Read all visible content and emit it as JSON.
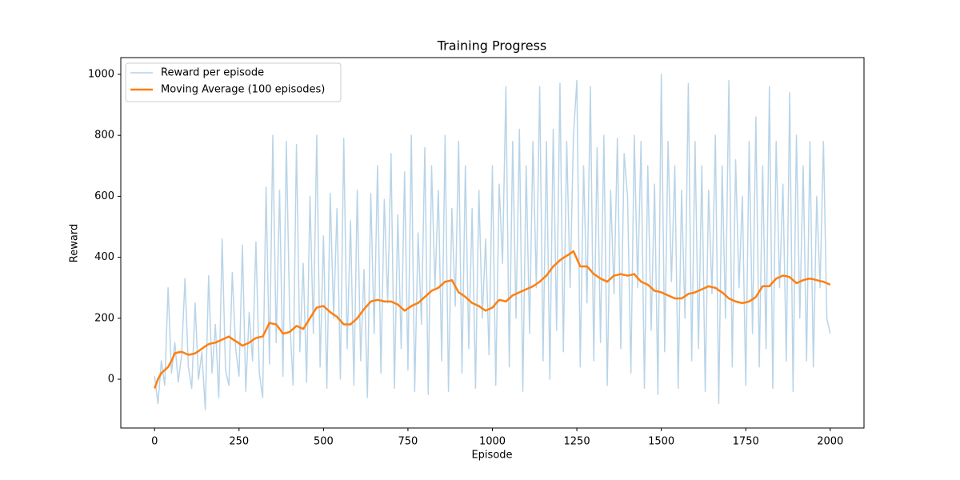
{
  "chart_data": {
    "type": "line",
    "title": "Training Progress",
    "x_label": "Episode",
    "y_label": "Reward",
    "x": [
      0,
      10,
      20,
      30,
      40,
      50,
      60,
      70,
      80,
      90,
      100,
      110,
      120,
      130,
      140,
      150,
      160,
      170,
      180,
      190,
      200,
      210,
      220,
      230,
      240,
      250,
      260,
      270,
      280,
      290,
      300,
      310,
      320,
      330,
      340,
      350,
      360,
      370,
      380,
      390,
      400,
      410,
      420,
      430,
      440,
      450,
      460,
      470,
      480,
      490,
      500,
      510,
      520,
      530,
      540,
      550,
      560,
      570,
      580,
      590,
      600,
      610,
      620,
      630,
      640,
      650,
      660,
      670,
      680,
      690,
      700,
      710,
      720,
      730,
      740,
      750,
      760,
      770,
      780,
      790,
      800,
      810,
      820,
      830,
      840,
      850,
      860,
      870,
      880,
      890,
      900,
      910,
      920,
      930,
      940,
      950,
      960,
      970,
      980,
      990,
      1000,
      1010,
      1020,
      1030,
      1040,
      1050,
      1060,
      1070,
      1080,
      1090,
      1100,
      1110,
      1120,
      1130,
      1140,
      1150,
      1160,
      1170,
      1180,
      1190,
      1200,
      1210,
      1220,
      1230,
      1240,
      1250,
      1260,
      1270,
      1280,
      1290,
      1300,
      1310,
      1320,
      1330,
      1340,
      1350,
      1360,
      1370,
      1380,
      1390,
      1400,
      1410,
      1420,
      1430,
      1440,
      1450,
      1460,
      1470,
      1480,
      1490,
      1500,
      1510,
      1520,
      1530,
      1540,
      1550,
      1560,
      1570,
      1580,
      1590,
      1600,
      1610,
      1620,
      1630,
      1640,
      1650,
      1660,
      1670,
      1680,
      1690,
      1700,
      1710,
      1720,
      1730,
      1740,
      1750,
      1760,
      1770,
      1780,
      1790,
      1800,
      1810,
      1820,
      1830,
      1840,
      1850,
      1860,
      1870,
      1880,
      1890,
      1900,
      1910,
      1920,
      1930,
      1940,
      1950,
      1960,
      1970,
      1980,
      1990,
      2000
    ],
    "series": [
      {
        "name": "Reward per episode",
        "color": "#b9d4e8",
        "width": 1.5,
        "values": [
          10,
          -80,
          60,
          -20,
          300,
          20,
          120,
          -10,
          80,
          330,
          40,
          -30,
          250,
          0,
          90,
          -100,
          340,
          20,
          180,
          -60,
          460,
          30,
          -20,
          350,
          100,
          10,
          440,
          -40,
          220,
          60,
          450,
          20,
          -60,
          630,
          50,
          800,
          120,
          620,
          10,
          780,
          200,
          -20,
          770,
          90,
          380,
          -10,
          600,
          150,
          800,
          40,
          470,
          -30,
          610,
          200,
          560,
          0,
          790,
          100,
          520,
          -20,
          620,
          60,
          360,
          -60,
          610,
          150,
          700,
          20,
          590,
          250,
          740,
          -30,
          540,
          100,
          680,
          30,
          800,
          -40,
          480,
          180,
          760,
          -50,
          700,
          300,
          620,
          60,
          800,
          -40,
          560,
          240,
          780,
          20,
          700,
          100,
          560,
          -30,
          620,
          200,
          460,
          80,
          700,
          -20,
          640,
          380,
          960,
          40,
          780,
          200,
          820,
          -40,
          700,
          150,
          780,
          300,
          960,
          60,
          780,
          0,
          820,
          160,
          970,
          90,
          780,
          300,
          800,
          980,
          40,
          700,
          250,
          960,
          60,
          760,
          120,
          800,
          -20,
          620,
          280,
          790,
          100,
          740,
          600,
          20,
          800,
          300,
          780,
          -30,
          700,
          160,
          640,
          -50,
          1000,
          90,
          780,
          320,
          700,
          -30,
          620,
          200,
          970,
          60,
          780,
          100,
          700,
          -40,
          620,
          280,
          800,
          -80,
          700,
          200,
          980,
          40,
          720,
          300,
          600,
          -20,
          780,
          150,
          860,
          40,
          700,
          100,
          960,
          -30,
          780,
          300,
          640,
          60,
          940,
          -40,
          800,
          200,
          700,
          60,
          780,
          40,
          600,
          300,
          780,
          200,
          150
        ]
      },
      {
        "name": "Moving Average (100 episodes)",
        "color": "#ff7f0e",
        "width": 2.5,
        "values": [
          -30,
          0,
          20,
          30,
          40,
          60,
          85,
          88,
          90,
          85,
          80,
          82,
          85,
          92,
          100,
          108,
          115,
          118,
          120,
          125,
          130,
          135,
          140,
          132,
          125,
          118,
          110,
          115,
          120,
          128,
          135,
          138,
          140,
          162,
          185,
          182,
          180,
          165,
          150,
          152,
          155,
          165,
          175,
          170,
          165,
          182,
          200,
          218,
          235,
          238,
          240,
          230,
          220,
          212,
          205,
          192,
          180,
          180,
          180,
          190,
          200,
          215,
          230,
          242,
          255,
          258,
          260,
          258,
          255,
          255,
          255,
          250,
          245,
          235,
          225,
          232,
          240,
          245,
          250,
          260,
          270,
          280,
          290,
          295,
          300,
          310,
          320,
          322,
          325,
          305,
          285,
          278,
          270,
          260,
          250,
          245,
          240,
          232,
          225,
          230,
          235,
          248,
          260,
          258,
          255,
          265,
          275,
          280,
          285,
          290,
          295,
          300,
          305,
          312,
          320,
          330,
          340,
          355,
          370,
          380,
          390,
          398,
          405,
          412,
          420,
          395,
          370,
          370,
          370,
          358,
          345,
          338,
          330,
          325,
          320,
          330,
          340,
          342,
          345,
          342,
          340,
          342,
          345,
          332,
          320,
          315,
          310,
          300,
          290,
          288,
          285,
          280,
          275,
          270,
          265,
          265,
          265,
          272,
          280,
          282,
          285,
          290,
          295,
          300,
          305,
          302,
          300,
          292,
          285,
          275,
          265,
          260,
          255,
          252,
          250,
          252,
          255,
          262,
          270,
          288,
          305,
          305,
          305,
          318,
          330,
          335,
          340,
          338,
          335,
          325,
          315,
          320,
          325,
          328,
          330,
          328,
          325,
          322,
          320,
          315,
          310
        ]
      }
    ],
    "xlim": [
      -100,
      2100
    ],
    "ylim": [
      -160,
      1055
    ],
    "xticks": [
      0,
      250,
      500,
      750,
      1000,
      1250,
      1500,
      1750,
      2000
    ],
    "yticks": [
      0,
      200,
      400,
      600,
      800,
      1000
    ],
    "grid": false,
    "legend": "upper-left"
  }
}
